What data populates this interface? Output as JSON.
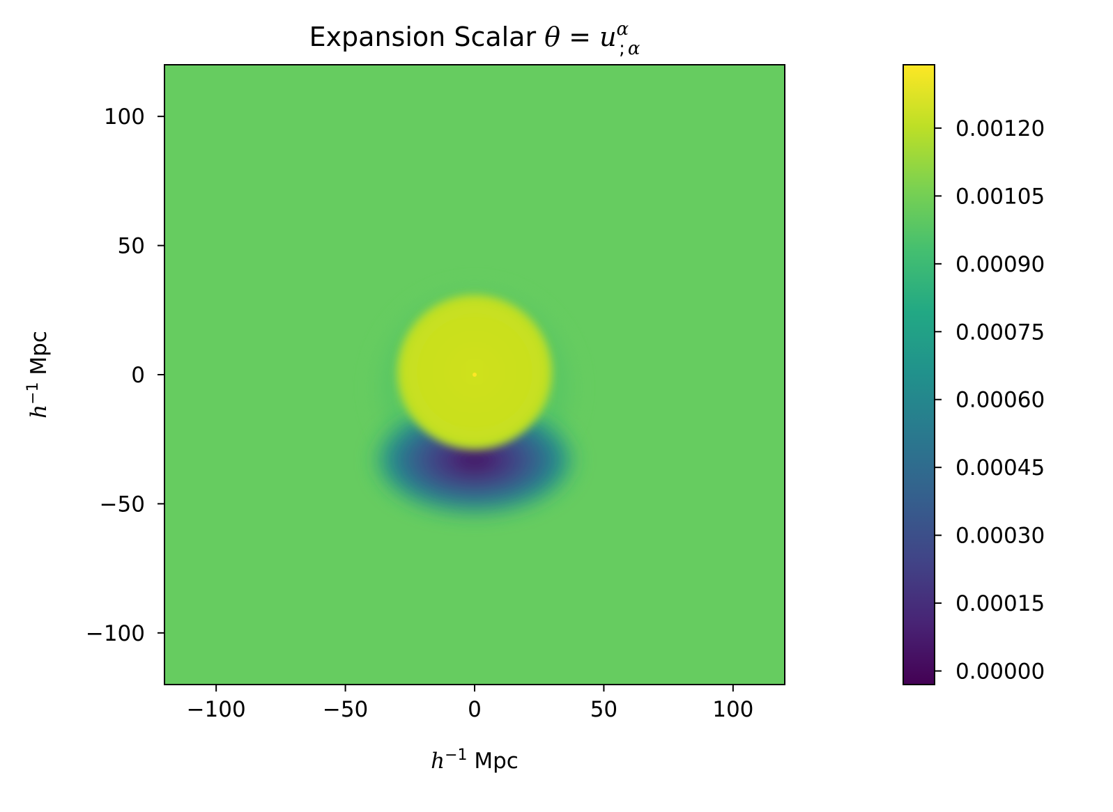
{
  "chart_data": {
    "type": "heatmap",
    "title": {
      "prefix": "Expansion Scalar ",
      "theta": "θ",
      "equals": " = ",
      "u": "u",
      "alpha_sup": "α",
      "semicolon_sub": ";",
      "alpha_sub": "α"
    },
    "xlabel": {
      "h": "h",
      "exp": "−1",
      "unit": " Mpc"
    },
    "ylabel": {
      "h": "h",
      "exp": "−1",
      "unit": " Mpc"
    },
    "xlim": [
      -120,
      120
    ],
    "ylim": [
      -120,
      120
    ],
    "xticks": [
      -100,
      -50,
      0,
      50,
      100
    ],
    "yticks": [
      -100,
      -50,
      0,
      50,
      100
    ],
    "xtick_labels": [
      "−100",
      "−50",
      "0",
      "50",
      "100"
    ],
    "ytick_labels": [
      "−100",
      "−50",
      "0",
      "50",
      "100"
    ],
    "colormap": "viridis",
    "colorbar": {
      "range": [
        -3e-05,
        0.00134
      ],
      "ticks": [
        0.0,
        0.00015,
        0.0003,
        0.00045,
        0.0006,
        0.00075,
        0.0009,
        0.00105,
        0.0012
      ],
      "tick_labels": [
        "0.00000",
        "0.00015",
        "0.00030",
        "0.00045",
        "0.00060",
        "0.00075",
        "0.00090",
        "0.00105",
        "0.00120"
      ]
    },
    "field": {
      "background_value": 0.00101,
      "features": [
        {
          "name": "yellow central disk",
          "center": [
            0,
            0
          ],
          "radius": 30,
          "value": 0.00119
        },
        {
          "name": "outer halo ring",
          "center": [
            0,
            -5
          ],
          "radius": 45,
          "value": 0.00096
        },
        {
          "name": "dark crescent minimum",
          "center": [
            0,
            -33
          ],
          "value": 0.0
        }
      ]
    }
  }
}
